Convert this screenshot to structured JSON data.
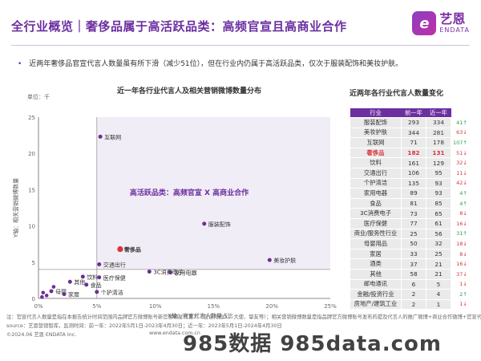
{
  "header": {
    "title": "全行业概览｜奢侈品属于高活跃品类：高频官宣且高商业合作",
    "logo_text": "艺恩",
    "logo_sub": "ENDATA",
    "logo_mark": "e"
  },
  "bullet": "近两年奢侈品官宣代言人数量虽有所下滑（减少51位），但在行业内仍属于高活跃品类，仅次于服装配饰和美妆护肤。",
  "chart_data": {
    "type": "scatter",
    "title": "近一年各行业代言人及相关营销微博数量分布",
    "unit_label": "单位：千",
    "xlabel": "X轴：官宣代言人数量占比",
    "ylabel": "Y轴：相关营销微博数量",
    "xlim": [
      0,
      25
    ],
    "ylim": [
      0,
      25
    ],
    "x_ticks": [
      "0%",
      "5%",
      "10%",
      "15%",
      "20%",
      "25%"
    ],
    "y_ticks": [
      "0",
      "5",
      "10",
      "15",
      "20",
      "25"
    ],
    "x_unit": "%",
    "quadrant_divider": {
      "x": 5,
      "y": 4
    },
    "annotation": "高活跃品类：高频官宣 X 高商业合作",
    "points": [
      {
        "label": "互联网",
        "x": 5.3,
        "y": 22.3,
        "highlight": false
      },
      {
        "label": "服装配饰",
        "x": 14.2,
        "y": 10.3,
        "highlight": false
      },
      {
        "label": "奢侈品",
        "x": 7.0,
        "y": 6.8,
        "highlight": true
      },
      {
        "label": "美妆护肤",
        "x": 19.8,
        "y": 5.3,
        "highlight": false
      },
      {
        "label": "交通出行",
        "x": 5.2,
        "y": 4.7,
        "highlight": false
      },
      {
        "label": "饮料",
        "x": 3.8,
        "y": 3.0,
        "highlight": false
      },
      {
        "label": "医疗保健",
        "x": 5.2,
        "y": 2.9,
        "highlight": false
      },
      {
        "label": "3C消费电子",
        "x": 9.5,
        "y": 3.7,
        "highlight": false
      },
      {
        "label": "家用电器",
        "x": 11.3,
        "y": 3.6,
        "highlight": false
      },
      {
        "label": "其他",
        "x": 2.7,
        "y": 2.3,
        "highlight": false
      },
      {
        "label": "食品",
        "x": 4.1,
        "y": 1.9,
        "highlight": false
      },
      {
        "label": "母婴",
        "x": 1.1,
        "y": 1.0,
        "highlight": false
      },
      {
        "label": "个护清洁",
        "x": 5.0,
        "y": 0.9,
        "highlight": false
      },
      {
        "label": "家居",
        "x": 2.2,
        "y": 0.6,
        "highlight": false
      }
    ],
    "unlabeled_points": [
      {
        "x": 0.4,
        "y": 0.8
      },
      {
        "x": 0.7,
        "y": 0.4
      },
      {
        "x": 1.3,
        "y": 1.6
      },
      {
        "x": 0.3,
        "y": 0.2
      }
    ]
  },
  "table": {
    "title": "近两年各行业代言人数量变化",
    "headers": [
      "行业",
      "前一年",
      "近一年"
    ],
    "rows": [
      {
        "industry": "服装配饰",
        "prev": "293",
        "recent": "334",
        "change": "41",
        "dir": "up",
        "highlight": false
      },
      {
        "industry": "美妆护肤",
        "prev": "344",
        "recent": "281",
        "change": "63",
        "dir": "down",
        "highlight": false
      },
      {
        "industry": "互联网",
        "prev": "71",
        "recent": "178",
        "change": "107",
        "dir": "up",
        "highlight": false
      },
      {
        "industry": "奢侈品",
        "prev": "182",
        "recent": "131",
        "change": "51",
        "dir": "down",
        "highlight": true
      },
      {
        "industry": "饮料",
        "prev": "161",
        "recent": "129",
        "change": "32",
        "dir": "down",
        "highlight": false
      },
      {
        "industry": "交通出行",
        "prev": "106",
        "recent": "95",
        "change": "11",
        "dir": "down",
        "highlight": false
      },
      {
        "industry": "个护清洁",
        "prev": "135",
        "recent": "93",
        "change": "42",
        "dir": "down",
        "highlight": false
      },
      {
        "industry": "家用电器",
        "prev": "89",
        "recent": "93",
        "change": "4",
        "dir": "up",
        "highlight": false
      },
      {
        "industry": "食品",
        "prev": "81",
        "recent": "85",
        "change": "4",
        "dir": "up",
        "highlight": false
      },
      {
        "industry": "3C消费电子",
        "prev": "73",
        "recent": "65",
        "change": "8",
        "dir": "down",
        "highlight": false
      },
      {
        "industry": "医疗保健",
        "prev": "77",
        "recent": "61",
        "change": "16",
        "dir": "down",
        "highlight": false
      },
      {
        "industry": "商业/服务性行业",
        "prev": "25",
        "recent": "56",
        "change": "31",
        "dir": "up",
        "highlight": false
      },
      {
        "industry": "母婴用品",
        "prev": "50",
        "recent": "32",
        "change": "18",
        "dir": "down",
        "highlight": false
      },
      {
        "industry": "家居",
        "prev": "33",
        "recent": "25",
        "change": "8",
        "dir": "down",
        "highlight": false
      },
      {
        "industry": "酒类",
        "prev": "37",
        "recent": "21",
        "change": "16",
        "dir": "down",
        "highlight": false
      },
      {
        "industry": "其他",
        "prev": "58",
        "recent": "21",
        "change": "37",
        "dir": "down",
        "highlight": false
      },
      {
        "industry": "邮电通讯",
        "prev": "6",
        "recent": "5",
        "change": "1",
        "dir": "down",
        "highlight": false
      },
      {
        "industry": "金融/投资行业",
        "prev": "2",
        "recent": "4",
        "change": "2",
        "dir": "up",
        "highlight": false
      },
      {
        "industry": "房地产/建筑工业",
        "prev": "2",
        "recent": "1",
        "change": "1",
        "dir": "down",
        "highlight": false
      }
    ],
    "up_arrow": "↑",
    "down_arrow": "↓"
  },
  "footer": {
    "note": "注：官宣代言人数量是指在本报告统计时间范围内品牌官方微博账号新官宣明星代言人（包含代言人、大使、挚友等）；相关营销微博数量是指品牌官方微博账号发布的提及代言人的推广微博+商业合作微博+官宣代言微博",
    "source": "source：艺恩营销智库，监测时间：前一年：2022年5月1日-2023年4月30日；近一年：2023年5月1日-2024年4月30日",
    "copyright": "©2024.06  艺恩 ENDATA Inc.",
    "website": "www.endata.com.cn",
    "watermark": "985数据 985data.com"
  },
  "colors": {
    "brand": "#6b2fa0",
    "plot_bg": "#f1edf6",
    "point": "#6b2f93",
    "highlight": "#d8343b",
    "up": "#27a34a",
    "down": "#d8343b"
  }
}
